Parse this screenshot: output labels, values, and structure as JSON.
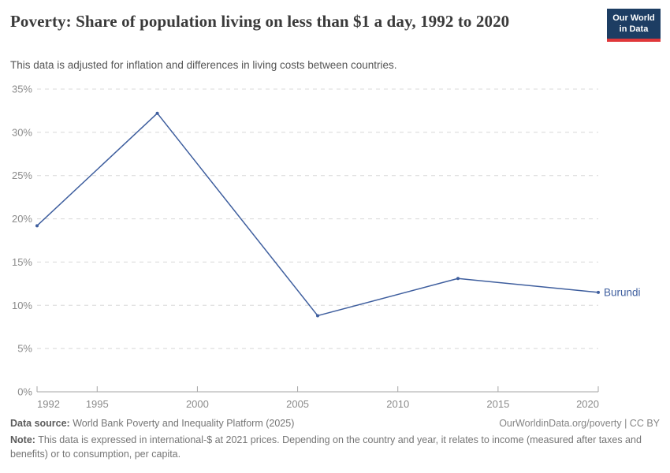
{
  "header": {
    "title": "Poverty: Share of population living on less than $1 a day, 1992 to 2020",
    "subtitle": "This data is adjusted for inflation and differences in living costs between countries.",
    "logo": {
      "line1": "Our World",
      "line2": "in Data",
      "bg_color": "#1d3d63",
      "accent_color": "#e0373a"
    }
  },
  "chart_data": {
    "type": "line",
    "title": "Poverty: Share of population living on less than $1 a day, 1992 to 2020",
    "xlabel": "",
    "ylabel": "",
    "xlim": [
      1992,
      2020
    ],
    "ylim": [
      0,
      35
    ],
    "grid": "horizontal-dashed",
    "legend_position": "line-end-label",
    "series": [
      {
        "name": "Burundi",
        "color": "#3e5e9e",
        "points": [
          {
            "x": 1992,
            "y": 19.2
          },
          {
            "x": 1998,
            "y": 32.2
          },
          {
            "x": 2006,
            "y": 8.8
          },
          {
            "x": 2013,
            "y": 13.1
          },
          {
            "x": 2020,
            "y": 11.5
          }
        ]
      }
    ],
    "xticks": [
      {
        "v": 1992,
        "label": "1992"
      },
      {
        "v": 1995,
        "label": "1995"
      },
      {
        "v": 2000,
        "label": "2000"
      },
      {
        "v": 2005,
        "label": "2005"
      },
      {
        "v": 2010,
        "label": "2010"
      },
      {
        "v": 2015,
        "label": "2015"
      },
      {
        "v": 2020,
        "label": "2020"
      }
    ],
    "yticks": [
      {
        "v": 0,
        "label": "0%"
      },
      {
        "v": 5,
        "label": "5%"
      },
      {
        "v": 10,
        "label": "10%"
      },
      {
        "v": 15,
        "label": "15%"
      },
      {
        "v": 20,
        "label": "20%"
      },
      {
        "v": 25,
        "label": "25%"
      },
      {
        "v": 30,
        "label": "30%"
      },
      {
        "v": 35,
        "label": "35%"
      }
    ]
  },
  "footer": {
    "datasource_label": "Data source:",
    "datasource_value": " World Bank Poverty and Inequality Platform (2025)",
    "attribution": "OurWorldinData.org/poverty | CC BY",
    "note_label": "Note:",
    "note_value": " This data is expressed in international-$ at 2021 prices. Depending on the country and year, it relates to income (measured after taxes and benefits) or to consumption, per capita."
  }
}
